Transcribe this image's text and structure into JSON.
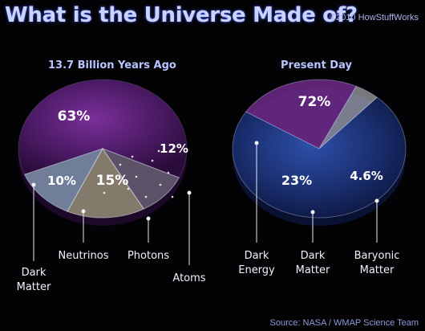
{
  "header": {
    "title": "What is the Universe Made of?",
    "credit": "©2010 HowStuffWorks"
  },
  "footer": {
    "source": "Source: NASA / WMAP Science Team"
  },
  "colors": {
    "dark_matter": "#6e2a88",
    "neutrinos": "#8f8f9a",
    "photons": "#d9d9a4",
    "atoms": "#a9cde4",
    "dark_energy": "#233f8c",
    "baryonic_matter": "#c4c4cc"
  },
  "chart_data": [
    {
      "type": "pie",
      "title": "13.7 Billion Years Ago",
      "slices": [
        {
          "label": "Dark Matter",
          "value": 63,
          "display": "63%"
        },
        {
          "label": "Neutrinos",
          "value": 10,
          "display": "10%"
        },
        {
          "label": "Photons",
          "value": 15,
          "display": "15%"
        },
        {
          "label": "Atoms",
          "value": 12,
          "display": "12%"
        }
      ]
    },
    {
      "type": "pie",
      "title": "Present Day",
      "slices": [
        {
          "label": "Dark Energy",
          "value": 72,
          "display": "72%"
        },
        {
          "label": "Dark Matter",
          "value": 23,
          "display": "23%"
        },
        {
          "label": "Baryonic Matter",
          "value": 4.6,
          "display": "4.6%"
        }
      ]
    }
  ]
}
